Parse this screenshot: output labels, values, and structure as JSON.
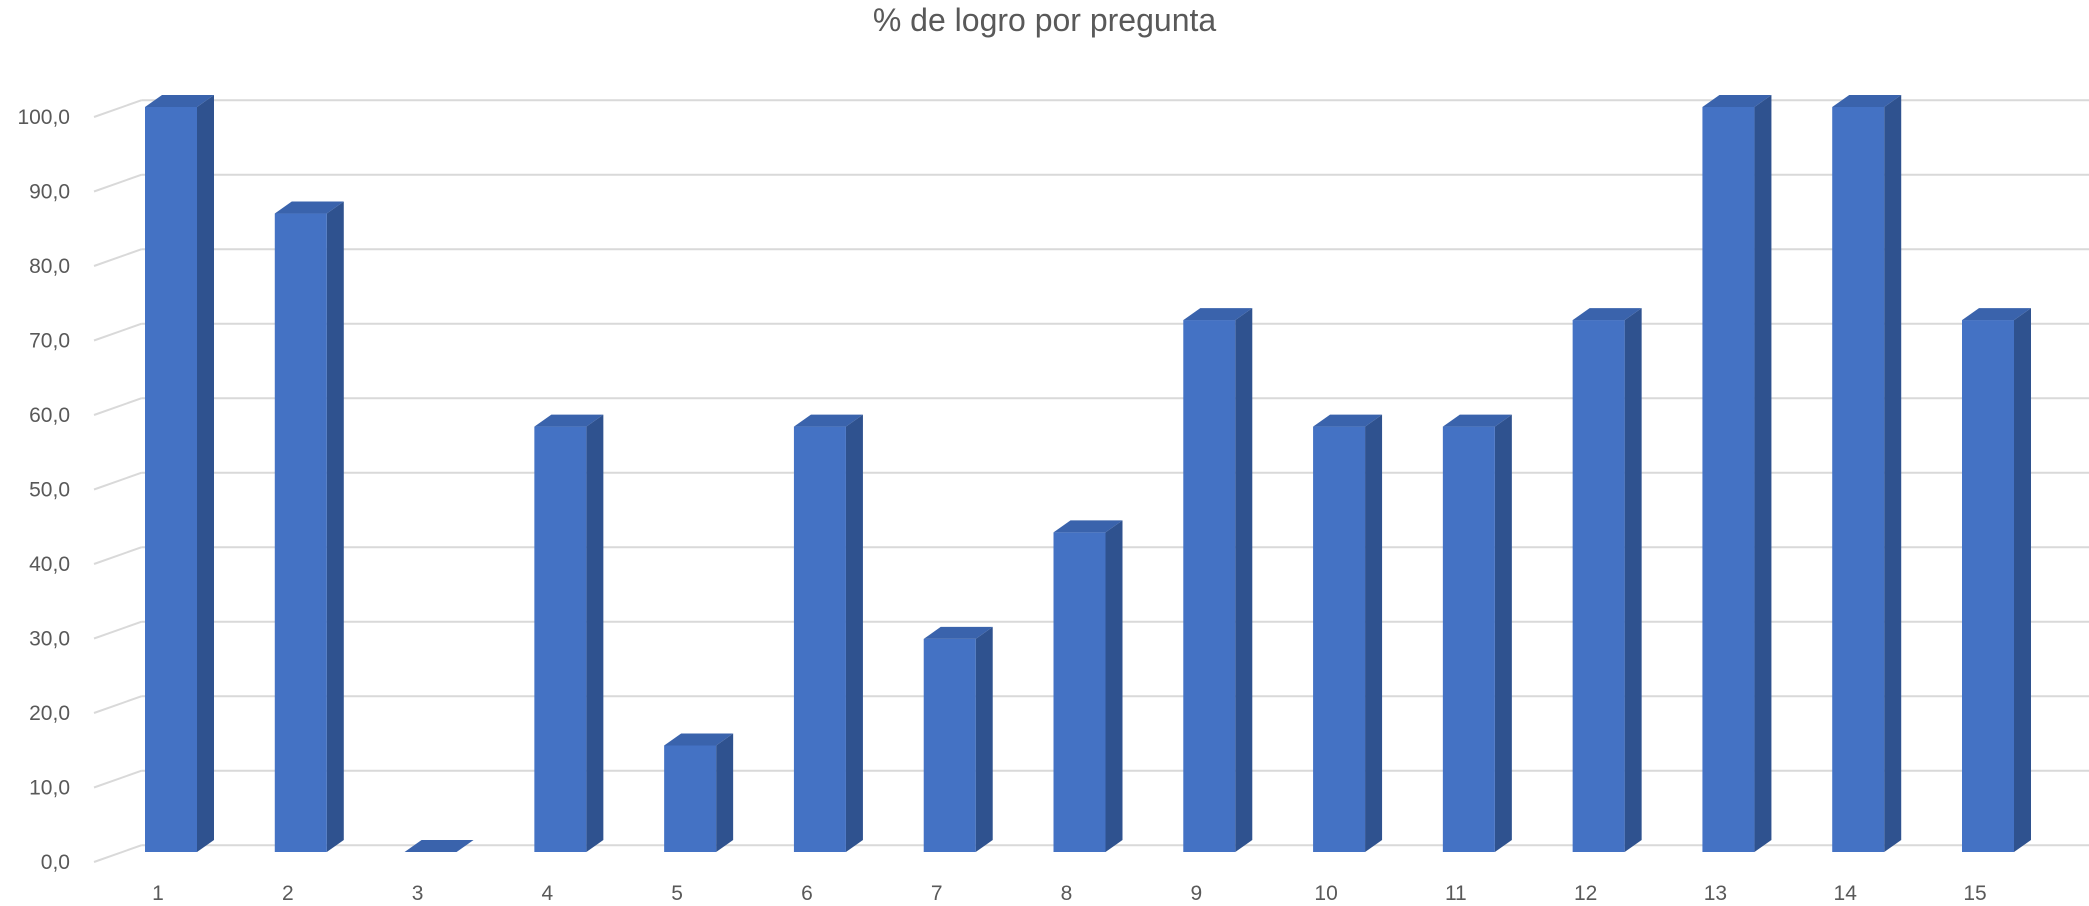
{
  "chart_data": {
    "type": "bar",
    "title": "% de logro por pregunta",
    "xlabel": "",
    "ylabel": "",
    "categories": [
      "1",
      "2",
      "3",
      "4",
      "5",
      "6",
      "7",
      "8",
      "9",
      "10",
      "11",
      "12",
      "13",
      "14",
      "15"
    ],
    "values": [
      100.0,
      85.7,
      0.0,
      57.1,
      14.3,
      57.1,
      28.6,
      42.9,
      71.4,
      57.1,
      57.1,
      71.4,
      100.0,
      100.0,
      71.4
    ],
    "ylim": [
      0,
      100
    ],
    "y_ticks": [
      "0,0",
      "10,0",
      "20,0",
      "30,0",
      "40,0",
      "50,0",
      "60,0",
      "70,0",
      "80,0",
      "90,0",
      "100,0"
    ],
    "grid": true,
    "legend": "none",
    "style": "3d-clustered-column",
    "colors": {
      "bar_front": "#4472C4",
      "bar_side": "#2F528F",
      "bar_top": "#3A63AC",
      "grid": "#D9D9D9",
      "text": "#595959"
    }
  }
}
